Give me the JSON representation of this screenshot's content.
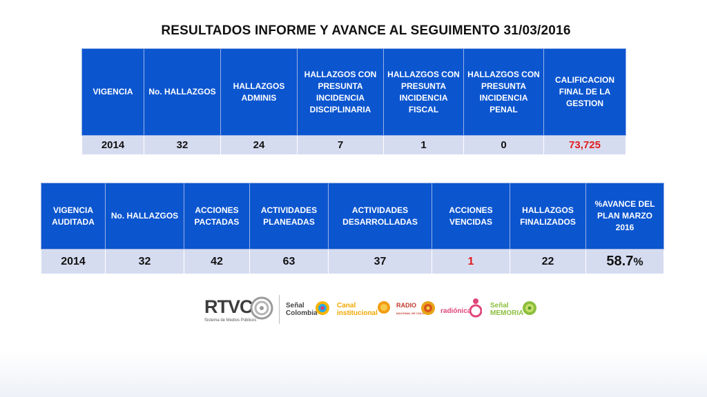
{
  "title": "RESULTADOS INFORME  Y AVANCE AL SEGUIMENTO 31/03/2016",
  "table1": {
    "headers": [
      "VIGENCIA",
      "No. HALLAZGOS",
      "HALLAZGOS ADMINIS",
      "HALLAZGOS CON PRESUNTA INCIDENCIA DISCIPLINARIA",
      "HALLAZGOS CON PRESUNTA INCIDENCIA FISCAL",
      "HALLAZGOS CON PRESUNTA INCIDENCIA PENAL",
      "CALIFICACION FINAL DE LA GESTION"
    ],
    "row": [
      "2014",
      "32",
      "24",
      "7",
      "1",
      "0",
      "73,725"
    ]
  },
  "table2": {
    "headers": [
      "VIGENCIA AUDITADA",
      "No. HALLAZGOS",
      "ACCIONES PACTADAS",
      "ACTIVIDADES PLANEADAS",
      "ACTIVIDADES DESARROLLADAS",
      "ACCIONES VENCIDAS",
      "HALLAZGOS FINALIZADOS",
      "%AVANCE DEL PLAN MARZO 2016"
    ],
    "row": [
      "2014",
      "32",
      "42",
      "63",
      "37",
      "1",
      "22"
    ],
    "avance_value": "58.7",
    "avance_unit": "%"
  },
  "logos": {
    "rtvc": "RTVC",
    "rtvc_sub": "Sistema de Medios Públicos",
    "senal_colombia_top": "Señal",
    "senal_colombia_bottom": "Colombia",
    "canal_top": "Canal",
    "canal_bottom": "institucional",
    "radio_top": "RADIO",
    "radio_bottom": "NACIONAL DE COLOMBIA",
    "radionica": "radiónica",
    "memoria_top": "Señal",
    "memoria_bottom": "MEMORIA"
  },
  "colors": {
    "header_blue": "#0b55cf",
    "cell_bg": "#d6dcf0",
    "highlight_red": "#e11b1b"
  }
}
